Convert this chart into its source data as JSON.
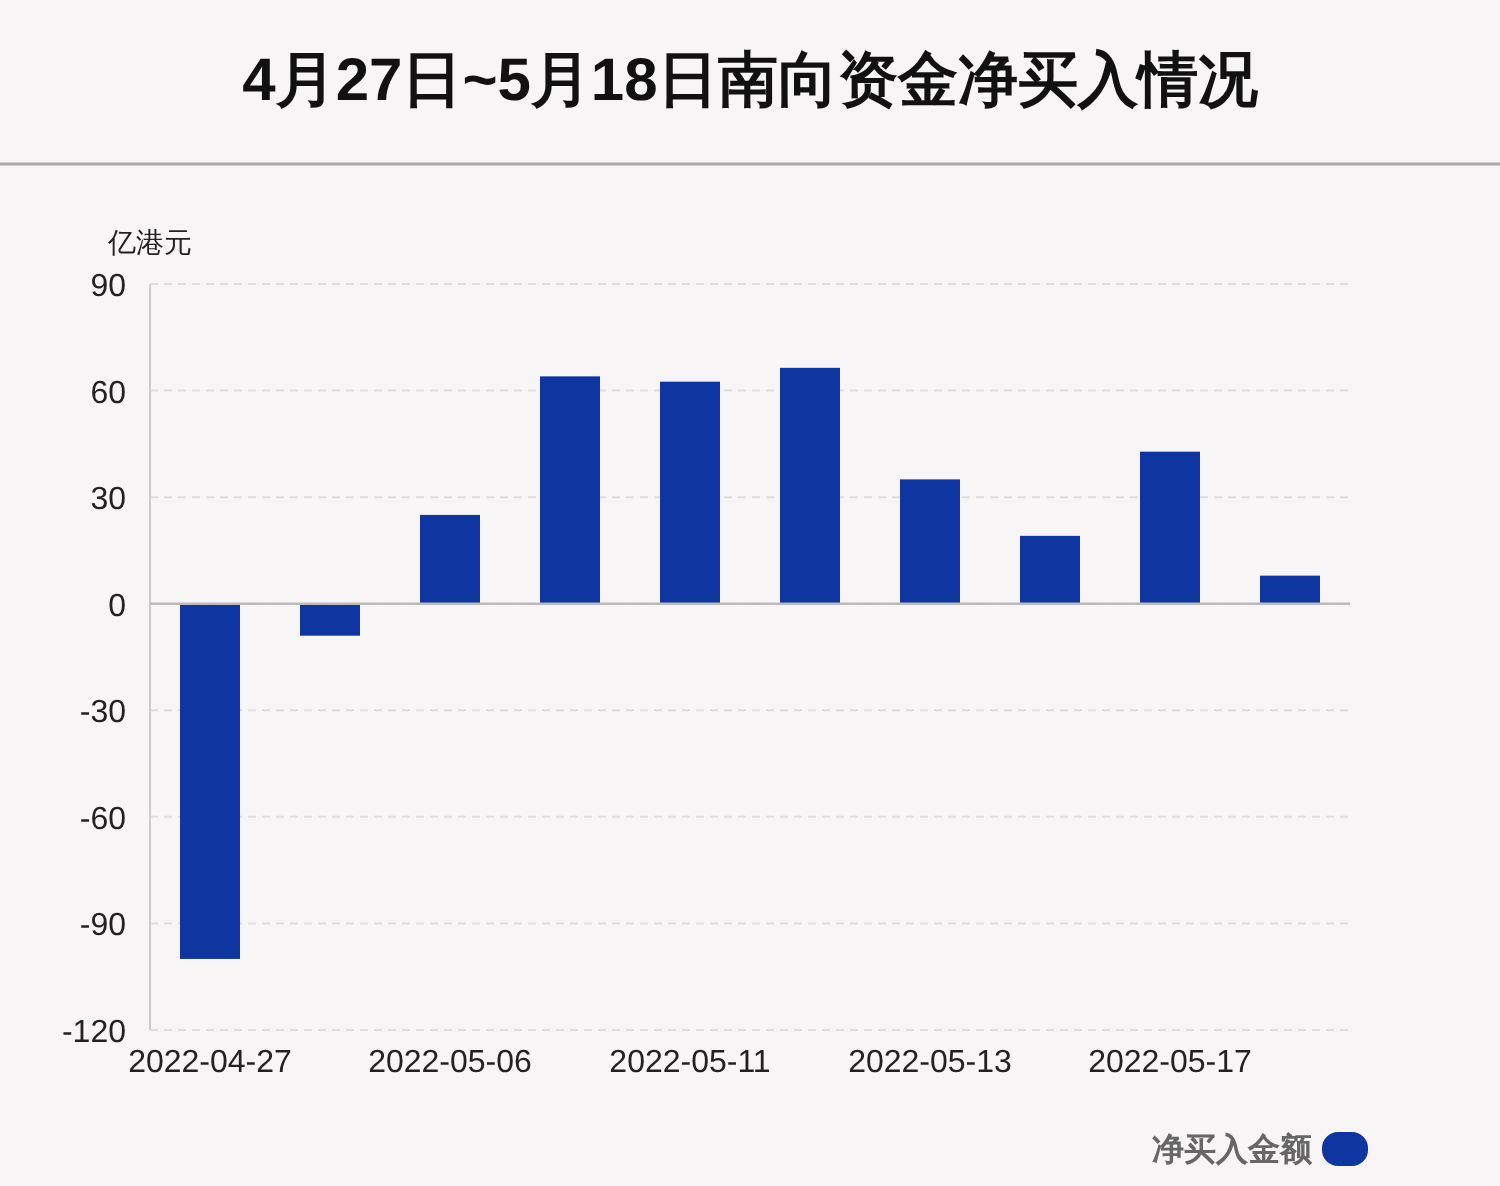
{
  "chart_data": {
    "type": "bar",
    "title": "4月27日~5月18日南向资金净买入情况",
    "ylabel": "亿港元",
    "categories": [
      "2022-04-27",
      null,
      "2022-05-06",
      null,
      "2022-05-11",
      null,
      "2022-05-13",
      null,
      "2022-05-17",
      null
    ],
    "series": [
      {
        "name": "净买入金额",
        "color": "#0f35a0",
        "values": [
          -100,
          -9,
          25,
          64,
          62.5,
          66.4,
          35,
          19.1,
          42.8,
          7.9
        ]
      }
    ],
    "ylim": [
      -120,
      90
    ],
    "yticks": [
      -120,
      -90,
      -60,
      -30,
      0,
      30,
      60,
      90
    ],
    "grid": "y",
    "legend": "bottom right"
  }
}
